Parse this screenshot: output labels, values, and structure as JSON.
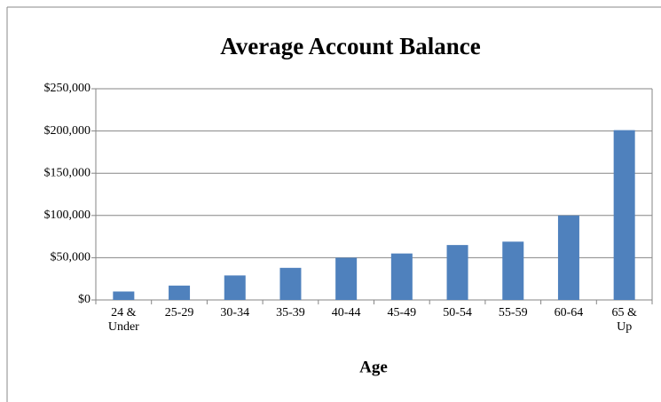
{
  "chart_data": {
    "type": "bar",
    "title": "Average Account Balance",
    "x_label": "Age",
    "categories": [
      "24 & Under",
      "25-29",
      "30-34",
      "35-39",
      "40-44",
      "45-49",
      "50-54",
      "55-59",
      "60-64",
      "65 & Up"
    ],
    "values": [
      10000,
      17000,
      29000,
      38000,
      50000,
      55000,
      65000,
      69000,
      100000,
      201000
    ],
    "color": "#4f81bd",
    "ylim": [
      0,
      250000
    ],
    "yticks": [
      {
        "value": 0,
        "label": "$0"
      },
      {
        "value": 50000,
        "label": "$50,000"
      },
      {
        "value": 100000,
        "label": "$100,000"
      },
      {
        "value": 150000,
        "label": "$150,000"
      },
      {
        "value": 200000,
        "label": "$200,000"
      },
      {
        "value": 250000,
        "label": "$250,000"
      }
    ],
    "grid": true
  }
}
